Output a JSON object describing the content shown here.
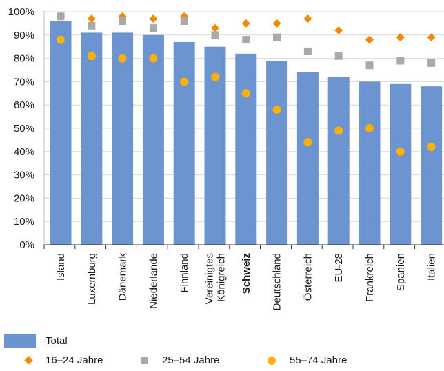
{
  "chart_data": {
    "type": "bar",
    "categories": [
      [
        "Island"
      ],
      [
        "Luxemburg"
      ],
      [
        "Dänemark"
      ],
      [
        "Niederlande"
      ],
      [
        "Finnland"
      ],
      [
        "Vereinigtes",
        "Königreich"
      ],
      [
        "Schweiz"
      ],
      [
        "Deutschland"
      ],
      [
        "Österreich"
      ],
      [
        "EU-28"
      ],
      [
        "Frankreich"
      ],
      [
        "Spanien"
      ],
      [
        "Italien"
      ]
    ],
    "highlight_category": "Schweiz",
    "ylim": [
      0,
      100
    ],
    "yticks": [
      "0%",
      "10%",
      "20%",
      "30%",
      "40%",
      "50%",
      "60%",
      "70%",
      "80%",
      "90%",
      "100%"
    ],
    "series": [
      {
        "name": "Total",
        "type": "bar",
        "color": "#6b94d0",
        "values": [
          96,
          91,
          91,
          90,
          87,
          85,
          82,
          79,
          74,
          72,
          70,
          69,
          68
        ]
      },
      {
        "name": "16–24 Jahre",
        "type": "marker",
        "marker": "diamond",
        "color": "#f28a00",
        "values": [
          98,
          97,
          98,
          97,
          98,
          93,
          95,
          95,
          97,
          92,
          88,
          89,
          89
        ]
      },
      {
        "name": "25–54 Jahre",
        "type": "marker",
        "marker": "square",
        "color": "#a9a9a9",
        "values": [
          98,
          94,
          96,
          93,
          96,
          90,
          88,
          89,
          83,
          81,
          77,
          79,
          78
        ]
      },
      {
        "name": "55–74 Jahre",
        "type": "marker",
        "marker": "circle",
        "color": "#ffb000",
        "values": [
          88,
          81,
          80,
          80,
          70,
          72,
          65,
          58,
          44,
          49,
          50,
          40,
          42
        ]
      }
    ],
    "grid": true,
    "legend_position": "bottom-left"
  },
  "legend": {
    "total": "Total",
    "age_16_24": "16–24 Jahre",
    "age_25_54": "25–54 Jahre",
    "age_55_74": "55–74 Jahre"
  }
}
